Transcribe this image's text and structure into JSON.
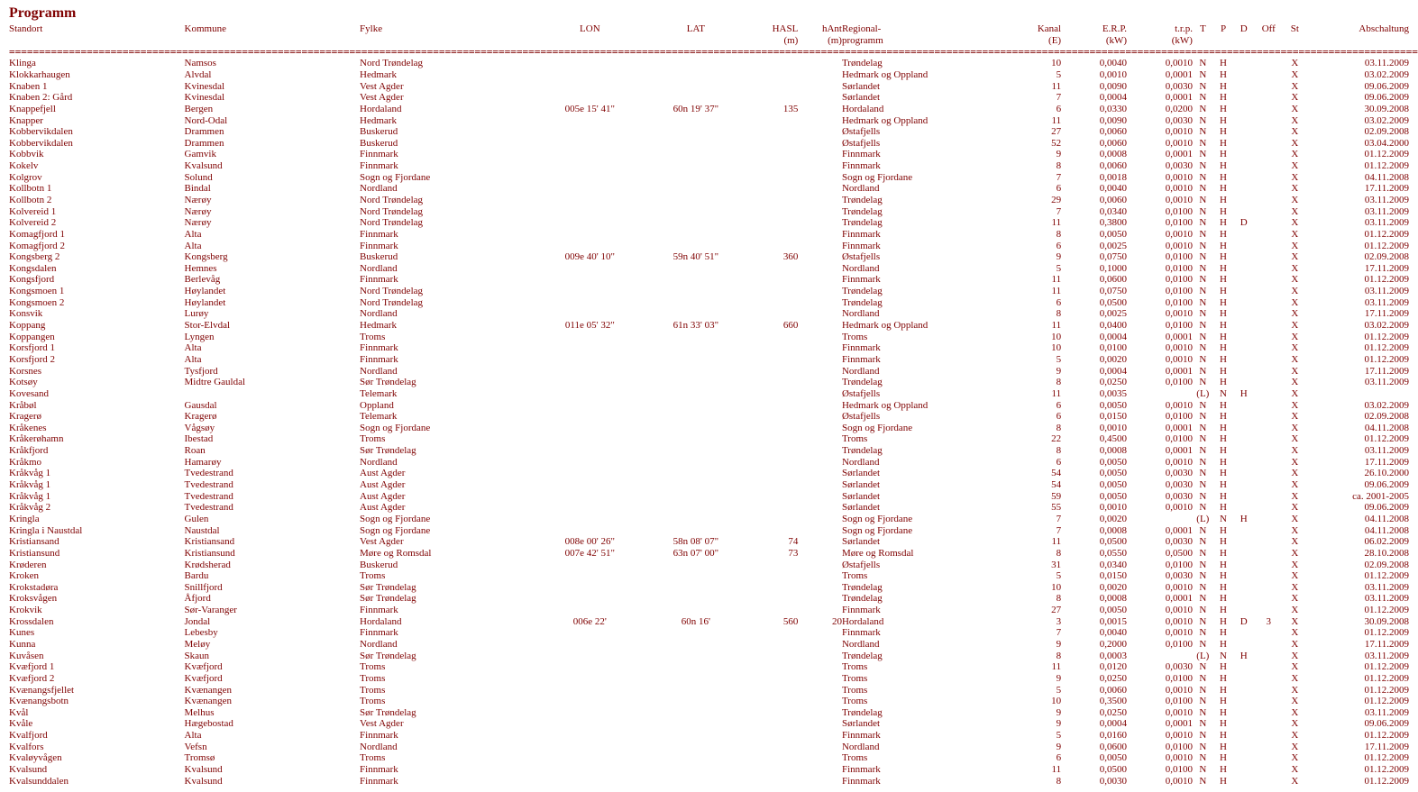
{
  "title": "Programm",
  "headers": {
    "standort": "Standort",
    "kommune": "Kommune",
    "fylke": "Fylke",
    "lon": "LON",
    "lat": "LAT",
    "hasl": "HASL",
    "hasl2": "(m)",
    "hant": "hAnt",
    "hant2": "(m)",
    "regional": "Regional-",
    "regional2": "programm",
    "kanal": "Kanal",
    "kanal2": "(E)",
    "erp": "E.R.P.",
    "erp2": "(kW)",
    "trp": "t.r.p.",
    "trp2": "(kW)",
    "t": "T",
    "p": "P",
    "d": "D",
    "off": "Off",
    "st": "St",
    "absch": "Abschaltung"
  },
  "sep": "============================================================================================================================================================================================================================================",
  "rows": [
    [
      "Klinga",
      "Namsos",
      "Nord Trøndelag",
      "",
      "",
      "",
      "",
      "Trøndelag",
      "10",
      "0,0040",
      "0,0010",
      "N",
      "H",
      "",
      "",
      "X",
      "03.11.2009"
    ],
    [
      "Klokkarhaugen",
      "Alvdal",
      "Hedmark",
      "",
      "",
      "",
      "",
      "Hedmark og Oppland",
      "5",
      "0,0010",
      "0,0001",
      "N",
      "H",
      "",
      "",
      "X",
      "03.02.2009"
    ],
    [
      "Knaben 1",
      "Kvinesdal",
      "Vest Agder",
      "",
      "",
      "",
      "",
      "Sørlandet",
      "11",
      "0,0090",
      "0,0030",
      "N",
      "H",
      "",
      "",
      "X",
      "09.06.2009"
    ],
    [
      "Knaben 2: Gård",
      "Kvinesdal",
      "Vest Agder",
      "",
      "",
      "",
      "",
      "Sørlandet",
      "7",
      "0,0004",
      "0,0001",
      "N",
      "H",
      "",
      "",
      "X",
      "09.06.2009"
    ],
    [
      "Knappefjell",
      "Bergen",
      "Hordaland",
      "005e 15' 41\"",
      "60n 19' 37\"",
      "135",
      "",
      "Hordaland",
      "6",
      "0,0330",
      "0,0200",
      "N",
      "H",
      "",
      "",
      "X",
      "30.09.2008"
    ],
    [
      "Knapper",
      "Nord-Odal",
      "Hedmark",
      "",
      "",
      "",
      "",
      "Hedmark og Oppland",
      "11",
      "0,0090",
      "0,0030",
      "N",
      "H",
      "",
      "",
      "X",
      "03.02.2009"
    ],
    [
      "Kobbervikdalen",
      "Drammen",
      "Buskerud",
      "",
      "",
      "",
      "",
      "Østafjells",
      "27",
      "0,0060",
      "0,0010",
      "N",
      "H",
      "",
      "",
      "X",
      "02.09.2008"
    ],
    [
      "Kobbervikdalen",
      "Drammen",
      "Buskerud",
      "",
      "",
      "",
      "",
      "Østafjells",
      "52",
      "0,0060",
      "0,0010",
      "N",
      "H",
      "",
      "",
      "X",
      "03.04.2000"
    ],
    [
      "Kobbvik",
      "Gamvik",
      "Finnmark",
      "",
      "",
      "",
      "",
      "Finnmark",
      "9",
      "0,0008",
      "0,0001",
      "N",
      "H",
      "",
      "",
      "X",
      "01.12.2009"
    ],
    [
      "Kokelv",
      "Kvalsund",
      "Finnmark",
      "",
      "",
      "",
      "",
      "Finnmark",
      "8",
      "0,0060",
      "0,0030",
      "N",
      "H",
      "",
      "",
      "X",
      "01.12.2009"
    ],
    [
      "Kolgrov",
      "Solund",
      "Sogn og Fjordane",
      "",
      "",
      "",
      "",
      "Sogn og Fjordane",
      "7",
      "0,0018",
      "0,0010",
      "N",
      "H",
      "",
      "",
      "X",
      "04.11.2008"
    ],
    [
      "Kollbotn 1",
      "Bindal",
      "Nordland",
      "",
      "",
      "",
      "",
      "Nordland",
      "6",
      "0,0040",
      "0,0010",
      "N",
      "H",
      "",
      "",
      "X",
      "17.11.2009"
    ],
    [
      "Kollbotn 2",
      "Nærøy",
      "Nord Trøndelag",
      "",
      "",
      "",
      "",
      "Trøndelag",
      "29",
      "0,0060",
      "0,0010",
      "N",
      "H",
      "",
      "",
      "X",
      "03.11.2009"
    ],
    [
      "Kolvereid 1",
      "Nærøy",
      "Nord Trøndelag",
      "",
      "",
      "",
      "",
      "Trøndelag",
      "7",
      "0,0340",
      "0,0100",
      "N",
      "H",
      "",
      "",
      "X",
      "03.11.2009"
    ],
    [
      "Kolvereid 2",
      "Nærøy",
      "Nord Trøndelag",
      "",
      "",
      "",
      "",
      "Trøndelag",
      "11",
      "0,3800",
      "0,0100",
      "N",
      "H",
      "D",
      "",
      "X",
      "03.11.2009"
    ],
    [
      "Komagfjord 1",
      "Alta",
      "Finnmark",
      "",
      "",
      "",
      "",
      "Finnmark",
      "8",
      "0,0050",
      "0,0010",
      "N",
      "H",
      "",
      "",
      "X",
      "01.12.2009"
    ],
    [
      "Komagfjord 2",
      "Alta",
      "Finnmark",
      "",
      "",
      "",
      "",
      "Finnmark",
      "6",
      "0,0025",
      "0,0010",
      "N",
      "H",
      "",
      "",
      "X",
      "01.12.2009"
    ],
    [
      "Kongsberg 2",
      "Kongsberg",
      "Buskerud",
      "009e 40' 10\"",
      "59n 40' 51\"",
      "360",
      "",
      "Østafjells",
      "9",
      "0,0750",
      "0,0100",
      "N",
      "H",
      "",
      "",
      "X",
      "02.09.2008"
    ],
    [
      "Kongsdalen",
      "Hemnes",
      "Nordland",
      "",
      "",
      "",
      "",
      "Nordland",
      "5",
      "0,1000",
      "0,0100",
      "N",
      "H",
      "",
      "",
      "X",
      "17.11.2009"
    ],
    [
      "Kongsfjord",
      "Berlevåg",
      "Finnmark",
      "",
      "",
      "",
      "",
      "Finnmark",
      "11",
      "0,0600",
      "0,0100",
      "N",
      "H",
      "",
      "",
      "X",
      "01.12.2009"
    ],
    [
      "Kongsmoen 1",
      "Høylandet",
      "Nord Trøndelag",
      "",
      "",
      "",
      "",
      "Trøndelag",
      "11",
      "0,0750",
      "0,0100",
      "N",
      "H",
      "",
      "",
      "X",
      "03.11.2009"
    ],
    [
      "Kongsmoen 2",
      "Høylandet",
      "Nord Trøndelag",
      "",
      "",
      "",
      "",
      "Trøndelag",
      "6",
      "0,0500",
      "0,0100",
      "N",
      "H",
      "",
      "",
      "X",
      "03.11.2009"
    ],
    [
      "Konsvik",
      "Lurøy",
      "Nordland",
      "",
      "",
      "",
      "",
      "Nordland",
      "8",
      "0,0025",
      "0,0010",
      "N",
      "H",
      "",
      "",
      "X",
      "17.11.2009"
    ],
    [
      "Koppang",
      "Stor-Elvdal",
      "Hedmark",
      "011e 05' 32\"",
      "61n 33' 03\"",
      "660",
      "",
      "Hedmark og Oppland",
      "11",
      "0,0400",
      "0,0100",
      "N",
      "H",
      "",
      "",
      "X",
      "03.02.2009"
    ],
    [
      "Koppangen",
      "Lyngen",
      "Troms",
      "",
      "",
      "",
      "",
      "Troms",
      "10",
      "0,0004",
      "0,0001",
      "N",
      "H",
      "",
      "",
      "X",
      "01.12.2009"
    ],
    [
      "Korsfjord 1",
      "Alta",
      "Finnmark",
      "",
      "",
      "",
      "",
      "Finnmark",
      "10",
      "0,0100",
      "0,0010",
      "N",
      "H",
      "",
      "",
      "X",
      "01.12.2009"
    ],
    [
      "Korsfjord 2",
      "Alta",
      "Finnmark",
      "",
      "",
      "",
      "",
      "Finnmark",
      "5",
      "0,0020",
      "0,0010",
      "N",
      "H",
      "",
      "",
      "X",
      "01.12.2009"
    ],
    [
      "Korsnes",
      "Tysfjord",
      "Nordland",
      "",
      "",
      "",
      "",
      "Nordland",
      "9",
      "0,0004",
      "0,0001",
      "N",
      "H",
      "",
      "",
      "X",
      "17.11.2009"
    ],
    [
      "Kotsøy",
      "Midtre Gauldal",
      "Sør Trøndelag",
      "",
      "",
      "",
      "",
      "Trøndelag",
      "8",
      "0,0250",
      "0,0100",
      "N",
      "H",
      "",
      "",
      "X",
      "03.11.2009"
    ],
    [
      "Kovesand",
      "",
      "Telemark",
      "",
      "",
      "",
      "",
      "Østafjells",
      "11",
      "0,0035",
      "",
      "(L)",
      "N",
      "H",
      "",
      "X",
      ""
    ],
    [
      "Kråbøl",
      "Gausdal",
      "Oppland",
      "",
      "",
      "",
      "",
      "Hedmark og Oppland",
      "6",
      "0,0050",
      "0,0010",
      "N",
      "H",
      "",
      "",
      "X",
      "03.02.2009"
    ],
    [
      "Kragerø",
      "Kragerø",
      "Telemark",
      "",
      "",
      "",
      "",
      "Østafjells",
      "6",
      "0,0150",
      "0,0100",
      "N",
      "H",
      "",
      "",
      "X",
      "02.09.2008"
    ],
    [
      "Kråkenes",
      "Vågsøy",
      "Sogn og Fjordane",
      "",
      "",
      "",
      "",
      "Sogn og Fjordane",
      "8",
      "0,0010",
      "0,0001",
      "N",
      "H",
      "",
      "",
      "X",
      "04.11.2008"
    ],
    [
      "Kråkerøhamn",
      "Ibestad",
      "Troms",
      "",
      "",
      "",
      "",
      "Troms",
      "22",
      "0,4500",
      "0,0100",
      "N",
      "H",
      "",
      "",
      "X",
      "01.12.2009"
    ],
    [
      "Kråkfjord",
      "Roan",
      "Sør Trøndelag",
      "",
      "",
      "",
      "",
      "Trøndelag",
      "8",
      "0,0008",
      "0,0001",
      "N",
      "H",
      "",
      "",
      "X",
      "03.11.2009"
    ],
    [
      "Kråkmo",
      "Hamarøy",
      "Nordland",
      "",
      "",
      "",
      "",
      "Nordland",
      "6",
      "0,0050",
      "0,0010",
      "N",
      "H",
      "",
      "",
      "X",
      "17.11.2009"
    ],
    [
      "Kråkvåg 1",
      "Tvedestrand",
      "Aust Agder",
      "",
      "",
      "",
      "",
      "Sørlandet",
      "54",
      "0,0050",
      "0,0030",
      "N",
      "H",
      "",
      "",
      "X",
      "26.10.2000"
    ],
    [
      "Kråkvåg 1",
      "Tvedestrand",
      "Aust Agder",
      "",
      "",
      "",
      "",
      "Sørlandet",
      "54",
      "0,0050",
      "0,0030",
      "N",
      "H",
      "",
      "",
      "X",
      "09.06.2009"
    ],
    [
      "Kråkvåg 1",
      "Tvedestrand",
      "Aust Agder",
      "",
      "",
      "",
      "",
      "Sørlandet",
      "59",
      "0,0050",
      "0,0030",
      "N",
      "H",
      "",
      "",
      "X",
      "ca. 2001-2005"
    ],
    [
      "Kråkvåg 2",
      "Tvedestrand",
      "Aust Agder",
      "",
      "",
      "",
      "",
      "Sørlandet",
      "55",
      "0,0010",
      "0,0010",
      "N",
      "H",
      "",
      "",
      "X",
      "09.06.2009"
    ],
    [
      "Kringla",
      "Gulen",
      "Sogn og Fjordane",
      "",
      "",
      "",
      "",
      "Sogn og Fjordane",
      "7",
      "0,0020",
      "",
      "(L)",
      "N",
      "H",
      "",
      "X",
      "04.11.2008"
    ],
    [
      "Kringla i Naustdal",
      "Naustdal",
      "Sogn og Fjordane",
      "",
      "",
      "",
      "",
      "Sogn og Fjordane",
      "7",
      "0,0008",
      "0,0001",
      "N",
      "H",
      "",
      "",
      "X",
      "04.11.2008"
    ],
    [
      "Kristiansand",
      "Kristiansand",
      "Vest Agder",
      "008e 00' 26\"",
      "58n 08' 07\"",
      "74",
      "",
      "Sørlandet",
      "11",
      "0,0500",
      "0,0030",
      "N",
      "H",
      "",
      "",
      "X",
      "06.02.2009"
    ],
    [
      "Kristiansund",
      "Kristiansund",
      "Møre og Romsdal",
      "007e 42' 51\"",
      "63n 07' 00\"",
      "73",
      "",
      "Møre og Romsdal",
      "8",
      "0,0550",
      "0,0500",
      "N",
      "H",
      "",
      "",
      "X",
      "28.10.2008"
    ],
    [
      "Krøderen",
      "Krødsherad",
      "Buskerud",
      "",
      "",
      "",
      "",
      "Østafjells",
      "31",
      "0,0340",
      "0,0100",
      "N",
      "H",
      "",
      "",
      "X",
      "02.09.2008"
    ],
    [
      "Kroken",
      "Bardu",
      "Troms",
      "",
      "",
      "",
      "",
      "Troms",
      "5",
      "0,0150",
      "0,0030",
      "N",
      "H",
      "",
      "",
      "X",
      "01.12.2009"
    ],
    [
      "Krokstadøra",
      "Snillfjord",
      "Sør Trøndelag",
      "",
      "",
      "",
      "",
      "Trøndelag",
      "10",
      "0,0020",
      "0,0010",
      "N",
      "H",
      "",
      "",
      "X",
      "03.11.2009"
    ],
    [
      "Kroksvågen",
      "Åfjord",
      "Sør Trøndelag",
      "",
      "",
      "",
      "",
      "Trøndelag",
      "8",
      "0,0008",
      "0,0001",
      "N",
      "H",
      "",
      "",
      "X",
      "03.11.2009"
    ],
    [
      "Krokvik",
      "Sør-Varanger",
      "Finnmark",
      "",
      "",
      "",
      "",
      "Finnmark",
      "27",
      "0,0050",
      "0,0010",
      "N",
      "H",
      "",
      "",
      "X",
      "01.12.2009"
    ],
    [
      "Krossdalen",
      "Jondal",
      "Hordaland",
      "006e 22'",
      "60n 16'",
      "560",
      "20",
      "Hordaland",
      "3",
      "0,0015",
      "0,0010",
      "N",
      "H",
      "D",
      "3",
      "X",
      "30.09.2008"
    ],
    [
      "Kunes",
      "Lebesby",
      "Finnmark",
      "",
      "",
      "",
      "",
      "Finnmark",
      "7",
      "0,0040",
      "0,0010",
      "N",
      "H",
      "",
      "",
      "X",
      "01.12.2009"
    ],
    [
      "Kunna",
      "Meløy",
      "Nordland",
      "",
      "",
      "",
      "",
      "Nordland",
      "9",
      "0,2000",
      "0,0100",
      "N",
      "H",
      "",
      "",
      "X",
      "17.11.2009"
    ],
    [
      "Kuvåsen",
      "Skaun",
      "Sør Trøndelag",
      "",
      "",
      "",
      "",
      "Trøndelag",
      "8",
      "0,0003",
      "",
      "(L)",
      "N",
      "H",
      "",
      "X",
      "03.11.2009"
    ],
    [
      "Kvæfjord 1",
      "Kvæfjord",
      "Troms",
      "",
      "",
      "",
      "",
      "Troms",
      "11",
      "0,0120",
      "0,0030",
      "N",
      "H",
      "",
      "",
      "X",
      "01.12.2009"
    ],
    [
      "Kvæfjord 2",
      "Kvæfjord",
      "Troms",
      "",
      "",
      "",
      "",
      "Troms",
      "9",
      "0,0250",
      "0,0100",
      "N",
      "H",
      "",
      "",
      "X",
      "01.12.2009"
    ],
    [
      "Kvænangsfjellet",
      "Kvænangen",
      "Troms",
      "",
      "",
      "",
      "",
      "Troms",
      "5",
      "0,0060",
      "0,0010",
      "N",
      "H",
      "",
      "",
      "X",
      "01.12.2009"
    ],
    [
      "Kvænangsbotn",
      "Kvænangen",
      "Troms",
      "",
      "",
      "",
      "",
      "Troms",
      "10",
      "0,3500",
      "0,0100",
      "N",
      "H",
      "",
      "",
      "X",
      "01.12.2009"
    ],
    [
      "Kvål",
      "Melhus",
      "Sør Trøndelag",
      "",
      "",
      "",
      "",
      "Trøndelag",
      "9",
      "0,0250",
      "0,0010",
      "N",
      "H",
      "",
      "",
      "X",
      "03.11.2009"
    ],
    [
      "Kvåle",
      "Hægebostad",
      "Vest Agder",
      "",
      "",
      "",
      "",
      "Sørlandet",
      "9",
      "0,0004",
      "0,0001",
      "N",
      "H",
      "",
      "",
      "X",
      "09.06.2009"
    ],
    [
      "Kvalfjord",
      "Alta",
      "Finnmark",
      "",
      "",
      "",
      "",
      "Finnmark",
      "5",
      "0,0160",
      "0,0010",
      "N",
      "H",
      "",
      "",
      "X",
      "01.12.2009"
    ],
    [
      "Kvalfors",
      "Vefsn",
      "Nordland",
      "",
      "",
      "",
      "",
      "Nordland",
      "9",
      "0,0600",
      "0,0100",
      "N",
      "H",
      "",
      "",
      "X",
      "17.11.2009"
    ],
    [
      "Kvaløyvågen",
      "Tromsø",
      "Troms",
      "",
      "",
      "",
      "",
      "Troms",
      "6",
      "0,0050",
      "0,0010",
      "N",
      "H",
      "",
      "",
      "X",
      "01.12.2009"
    ],
    [
      "Kvalsund",
      "Kvalsund",
      "Finnmark",
      "",
      "",
      "",
      "",
      "Finnmark",
      "11",
      "0,0500",
      "0,0100",
      "N",
      "H",
      "",
      "",
      "X",
      "01.12.2009"
    ],
    [
      "Kvalsunddalen",
      "Kvalsund",
      "Finnmark",
      "",
      "",
      "",
      "",
      "Finnmark",
      "8",
      "0,0030",
      "0,0010",
      "N",
      "H",
      "",
      "",
      "X",
      "01.12.2009"
    ]
  ]
}
